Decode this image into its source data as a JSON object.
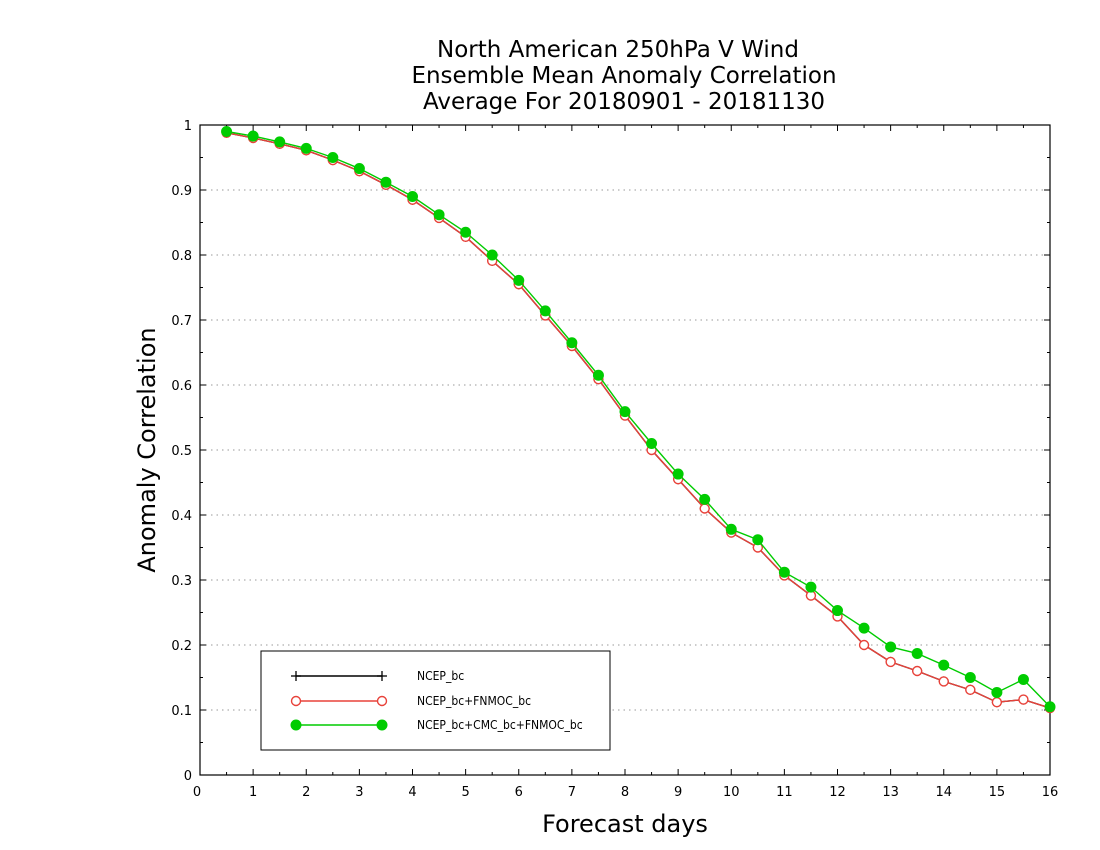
{
  "chart_data": {
    "type": "line",
    "title_lines": [
      "North American 250hPa V Wind",
      "Ensemble Mean Anomaly Correlation",
      "Average For 20180901 - 20181130"
    ],
    "xlabel": "Forecast days",
    "ylabel": "Anomaly Correlation",
    "xlim": [
      0,
      16
    ],
    "ylim": [
      0,
      1
    ],
    "xticks": [
      0,
      1,
      2,
      3,
      4,
      5,
      6,
      7,
      8,
      9,
      10,
      11,
      12,
      13,
      14,
      15,
      16
    ],
    "yticks": [
      0,
      0.1,
      0.2,
      0.3,
      0.4,
      0.5,
      0.6,
      0.7,
      0.8,
      0.9,
      1
    ],
    "ytick_labels": [
      "0",
      "0.1",
      "0.2",
      "0.3",
      "0.4",
      "0.5",
      "0.6",
      "0.7",
      "0.8",
      "0.9",
      "1"
    ],
    "grid": true,
    "legend_position": "bottom-left",
    "x": [
      0.5,
      1,
      1.5,
      2,
      2.5,
      3,
      3.5,
      4,
      4.5,
      5,
      5.5,
      6,
      6.5,
      7,
      7.5,
      8,
      8.5,
      9,
      9.5,
      10,
      10.5,
      11,
      11.5,
      12,
      12.5,
      13,
      13.5,
      14,
      14.5,
      15,
      15.5,
      16
    ],
    "series": [
      {
        "name": "NCEP_bc",
        "color": "#000000",
        "marker": "plus",
        "values": [
          0.988,
          0.98,
          0.971,
          0.961,
          0.946,
          0.929,
          0.908,
          0.885,
          0.857,
          0.828,
          0.791,
          0.755,
          0.707,
          0.66,
          0.609,
          0.553,
          0.5,
          0.455,
          0.41,
          0.373,
          0.35,
          0.307,
          0.276,
          0.244,
          0.2,
          0.174,
          0.16,
          0.144,
          0.131,
          0.112,
          0.116,
          0.103
        ]
      },
      {
        "name": "NCEP_bc+FNMOC_bc",
        "color": "#e8423a",
        "marker": "open-circle",
        "values": [
          0.988,
          0.98,
          0.971,
          0.961,
          0.946,
          0.929,
          0.908,
          0.885,
          0.857,
          0.828,
          0.791,
          0.755,
          0.707,
          0.66,
          0.609,
          0.553,
          0.5,
          0.455,
          0.41,
          0.373,
          0.35,
          0.307,
          0.276,
          0.244,
          0.2,
          0.174,
          0.16,
          0.144,
          0.131,
          0.112,
          0.116,
          0.103
        ]
      },
      {
        "name": "NCEP_bc+CMC_bc+FNMOC_bc",
        "color": "#00cc00",
        "marker": "filled-circle",
        "values": [
          0.99,
          0.983,
          0.974,
          0.964,
          0.95,
          0.933,
          0.912,
          0.89,
          0.862,
          0.835,
          0.8,
          0.761,
          0.714,
          0.665,
          0.615,
          0.559,
          0.51,
          0.463,
          0.424,
          0.378,
          0.362,
          0.312,
          0.289,
          0.253,
          0.226,
          0.197,
          0.187,
          0.169,
          0.15,
          0.127,
          0.147,
          0.105
        ]
      }
    ]
  }
}
